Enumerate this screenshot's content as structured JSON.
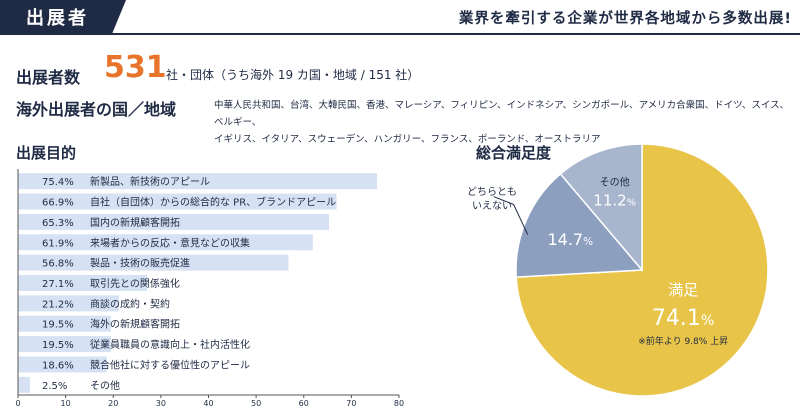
{
  "header": {
    "tab_label": "出展者",
    "tagline": "業界を牽引する企業が世界各地域から多数出展!"
  },
  "exhibitors": {
    "label": "出展者数",
    "number": "531",
    "unit_text": "社・団体（うち海外 19 カ国・地域 / 151 社）"
  },
  "countries": {
    "label": "海外出展者の国／地域",
    "list_line1": "中華人民共和国、台湾、大韓民国、香港、マレーシア、フィリピン、インドネシア、シンガポール、アメリカ合衆国、ドイツ、スイス、ベルギー、",
    "list_line2": "イギリス、イタリア、スウェーデン、ハンガリー、フランス、ポーランド、オーストラリア"
  },
  "purpose_title": "出展目的",
  "satisfaction_title": "総合満足度",
  "colors": {
    "navy": "#1f2a44",
    "orange": "#e8732a",
    "bar": "#d6e2f3",
    "pie_satisfied": "#e8c548",
    "pie_neutral": "#8d9fbf",
    "pie_other": "#a7b5cd"
  },
  "chart_data": [
    {
      "type": "bar",
      "orientation": "horizontal",
      "title": "出展目的",
      "categories": [
        "新製品、新技術のアピール",
        "自社（自団体）からの総合的な PR、ブランドアピール",
        "国内の新規顧客開拓",
        "来場者からの反応・意見などの収集",
        "製品・技術の販売促進",
        "取引先との関係強化",
        "商談の成約・契約",
        "海外の新規顧客開拓",
        "従業員職員の意識向上・社内活性化",
        "競合他社に対する優位性のアピール",
        "その他"
      ],
      "values": [
        75.4,
        66.9,
        65.3,
        61.9,
        56.8,
        27.1,
        21.2,
        19.5,
        19.5,
        18.6,
        2.5
      ],
      "value_labels": [
        "75.4%",
        "66.9%",
        "65.3%",
        "61.9%",
        "56.8%",
        "27.1%",
        "21.2%",
        "19.5%",
        "19.5%",
        "18.6%",
        "2.5%"
      ],
      "xlim": [
        0,
        80
      ],
      "xticks": [
        "0",
        "10",
        "20",
        "30",
        "40",
        "50",
        "60",
        "70",
        "80"
      ]
    },
    {
      "type": "pie",
      "title": "総合満足度",
      "slices": [
        {
          "label": "満足",
          "value": 74.1,
          "value_text": "74.1",
          "note": "※前年より 9.8% 上昇"
        },
        {
          "label": "どちらとも\nいえない",
          "label_lines": [
            "どちらとも",
            "いえない"
          ],
          "value": 14.7,
          "value_text": "14.7"
        },
        {
          "label": "その他",
          "value": 11.2,
          "value_text": "11.2"
        }
      ],
      "percent_sign": "%"
    }
  ]
}
